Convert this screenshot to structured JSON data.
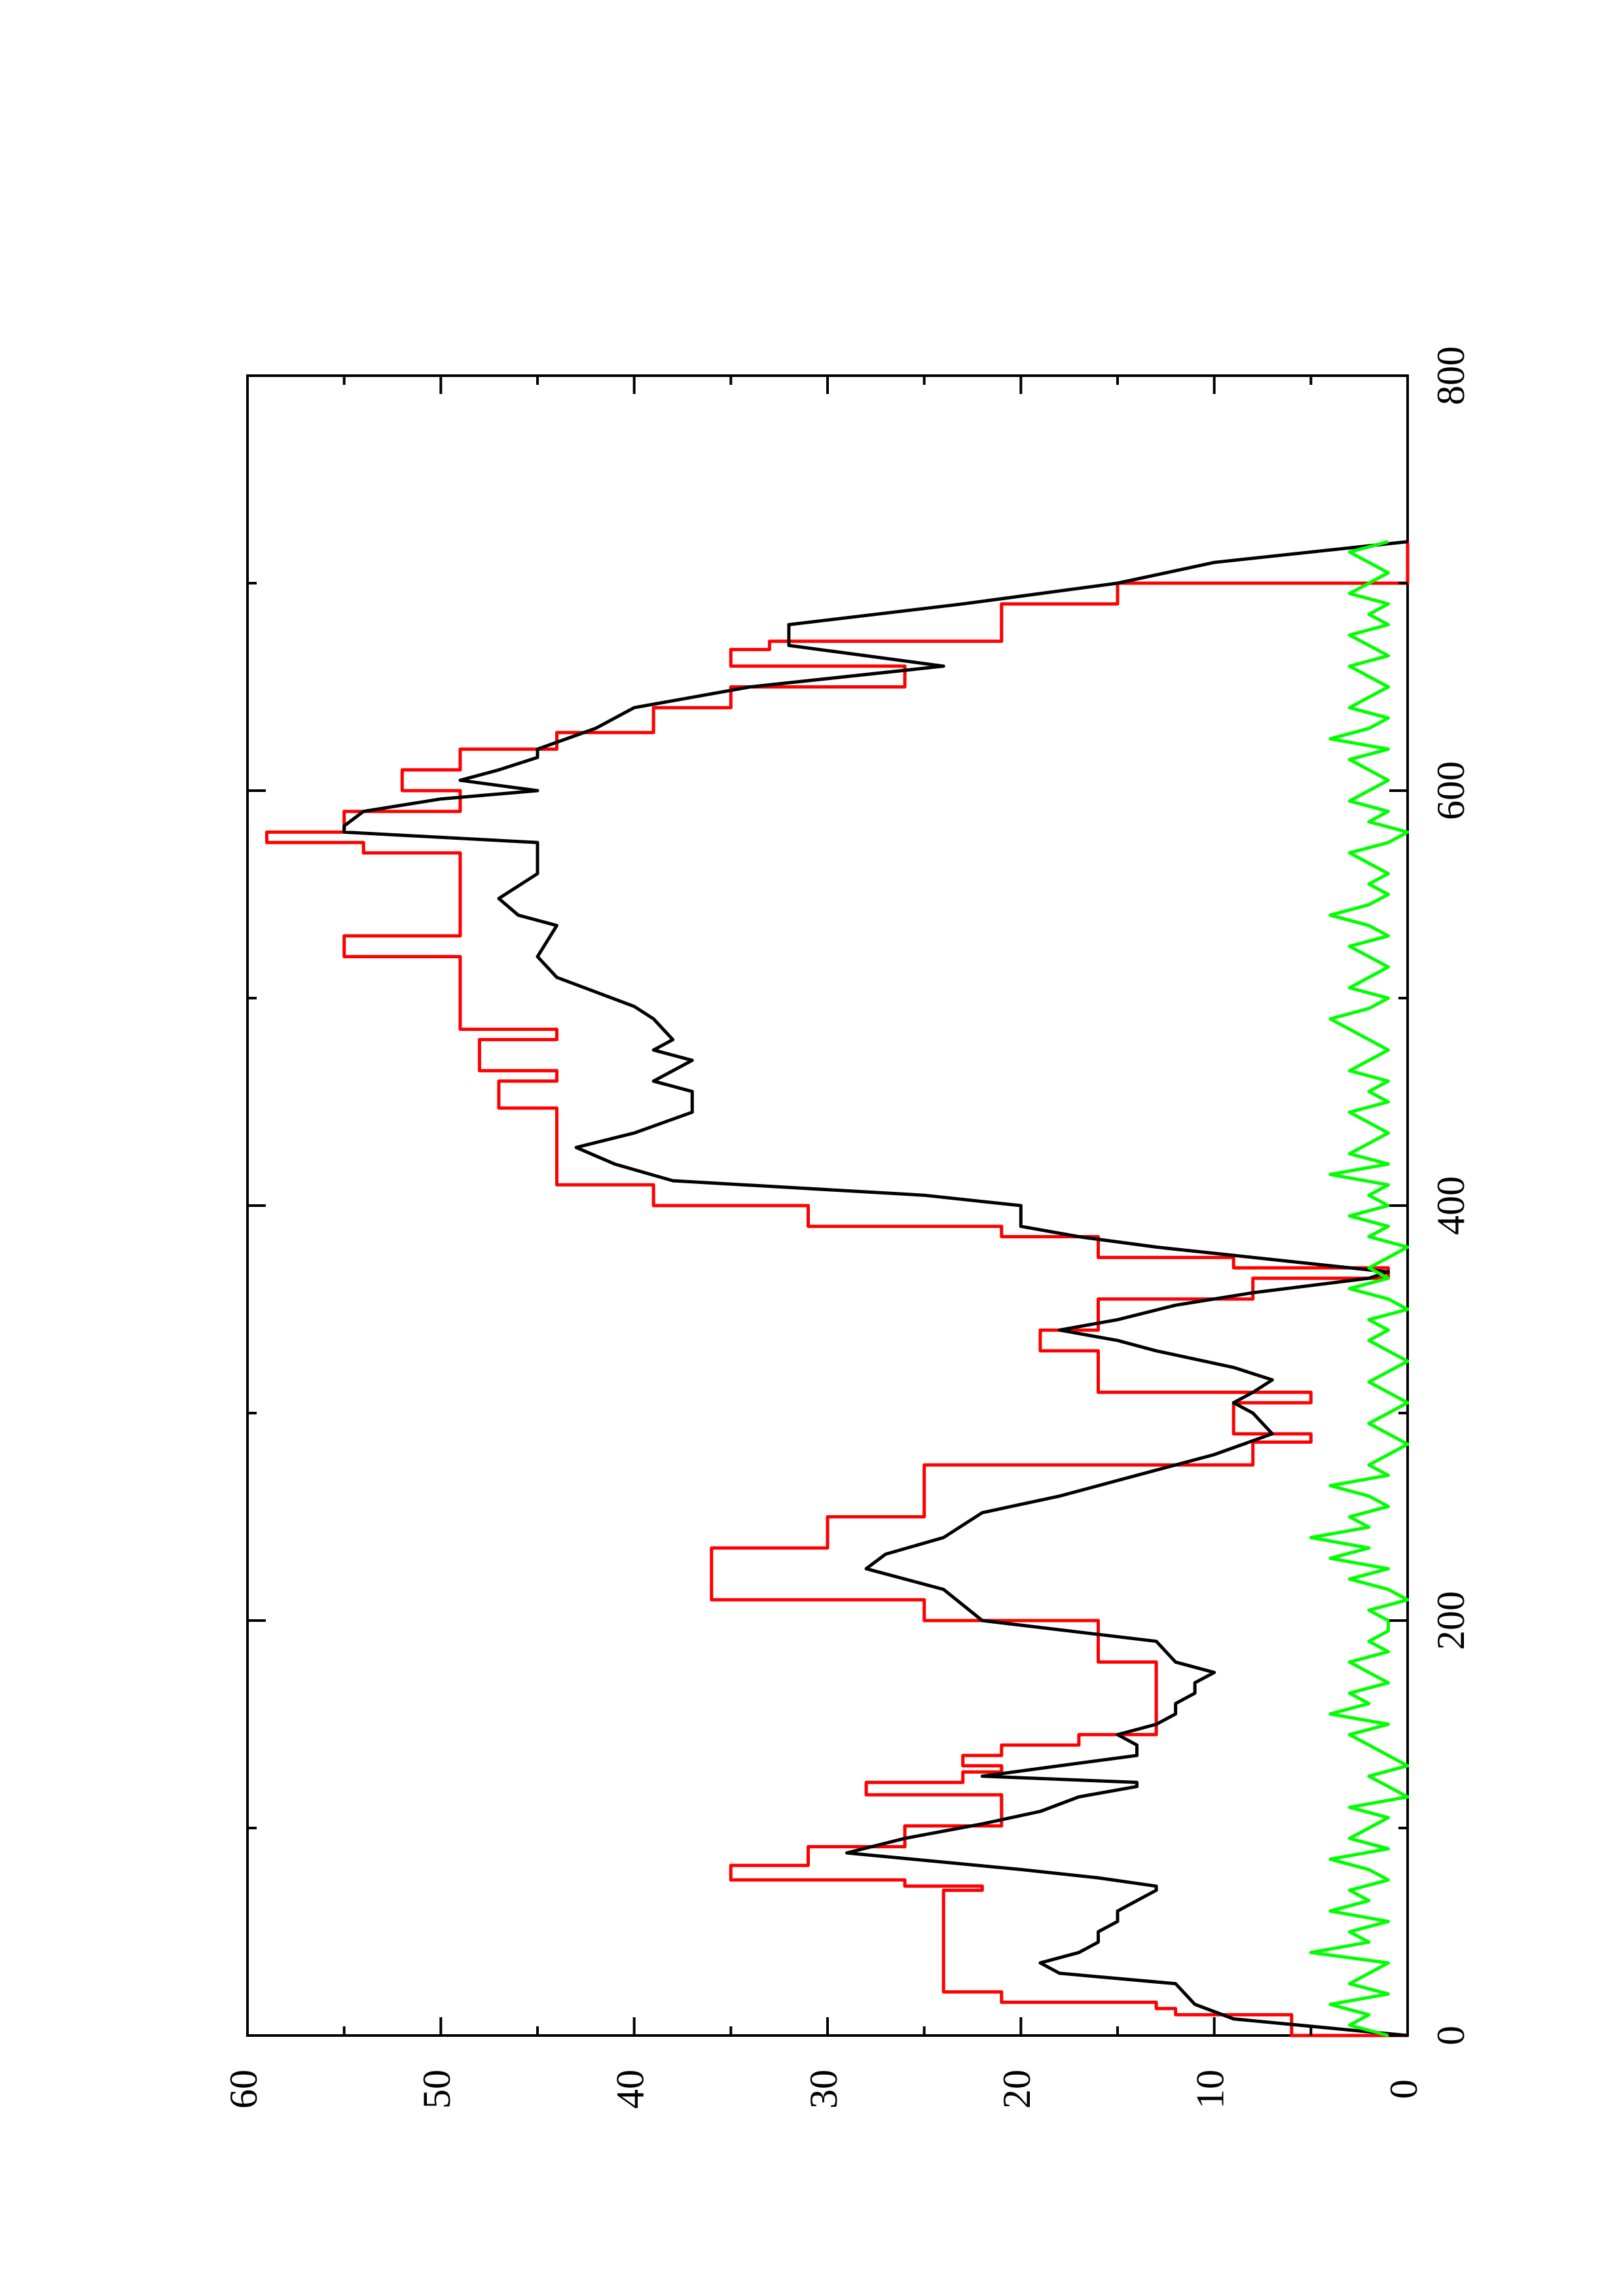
{
  "chart_data": {
    "type": "line",
    "title": "",
    "xlabel": "",
    "ylabel": "",
    "xlim": [
      0,
      800
    ],
    "ylim": [
      0,
      60
    ],
    "xticks": [
      0,
      200,
      400,
      600,
      800
    ],
    "yticks": [
      0,
      10,
      20,
      30,
      40,
      50,
      60
    ],
    "xtick_labels": [
      "0",
      "200",
      "400",
      "600",
      "800"
    ],
    "ytick_labels": [
      "0",
      "10",
      "20",
      "30",
      "40",
      "50",
      "60"
    ],
    "grid": false,
    "legend": false,
    "orientation": "rotated 90° counter-clockwise",
    "series": [
      {
        "color": "#ff0000",
        "style": "step",
        "x": [
          0,
          10,
          13,
          16,
          21,
          24,
          35,
          38,
          43,
          46,
          48,
          70,
          72,
          75,
          82,
          91,
          101,
          113,
          116,
          119,
          122,
          127,
          130,
          135,
          140,
          145,
          151,
          160,
          180,
          200,
          210,
          235,
          250,
          275,
          286,
          290,
          303,
          305,
          310,
          330,
          340,
          355,
          365,
          370,
          375,
          385,
          390,
          400,
          410,
          425,
          440,
          443,
          445,
          447,
          455,
          460,
          465,
          470,
          480,
          485,
          500,
          510,
          520,
          530,
          545,
          560,
          570,
          575,
          580,
          590,
          600,
          610,
          620,
          628,
          640,
          650,
          660,
          668,
          672,
          690,
          700,
          720
        ],
        "y": [
          0,
          6,
          12,
          13,
          21,
          24,
          24,
          24,
          24,
          24,
          24,
          24,
          22,
          26,
          35,
          31,
          26,
          21,
          21,
          28,
          28,
          23,
          21,
          23,
          21,
          17,
          13,
          13,
          13,
          16,
          25,
          36,
          30,
          25,
          8,
          5,
          9,
          9,
          5,
          16,
          19,
          16,
          8,
          1,
          9,
          16,
          21,
          31,
          39,
          44,
          44,
          44,
          44,
          44,
          47,
          47,
          44,
          48,
          48,
          44,
          49,
          49,
          49,
          55,
          49,
          49,
          49,
          54,
          59,
          55,
          49,
          52,
          49,
          44,
          39,
          35,
          26,
          35,
          33,
          21,
          15,
          0
        ]
      },
      {
        "color": "#000000",
        "style": "line",
        "x": [
          0,
          8,
          15,
          25,
          30,
          35,
          40,
          45,
          50,
          55,
          60,
          65,
          70,
          72,
          76,
          80,
          88,
          95,
          102,
          108,
          115,
          120,
          122,
          125,
          130,
          135,
          140,
          145,
          150,
          155,
          160,
          165,
          170,
          175,
          180,
          190,
          200,
          215,
          225,
          232,
          240,
          252,
          260,
          270,
          280,
          290,
          300,
          305,
          310,
          316,
          322,
          330,
          335,
          340,
          345,
          352,
          358,
          365,
          368,
          374,
          380,
          385,
          390,
          396,
          400,
          405,
          412,
          420,
          428,
          435,
          445,
          455,
          460,
          470,
          475,
          480,
          490,
          496,
          510,
          520,
          535,
          540,
          548,
          560,
          570,
          575,
          580,
          583,
          590,
          596,
          600,
          605,
          610,
          616,
          620,
          630,
          640,
          650,
          660,
          670,
          680,
          690,
          700,
          710,
          720
        ],
        "y": [
          0,
          9,
          11,
          12,
          18,
          19,
          17,
          16,
          16,
          15,
          15,
          14,
          13,
          13,
          16,
          20,
          29,
          26,
          22,
          19,
          17,
          14,
          14,
          22,
          18,
          14,
          14,
          15,
          13,
          12,
          12,
          11,
          11,
          10,
          12,
          13,
          22,
          24,
          28,
          27,
          24,
          22,
          18,
          14,
          10,
          7,
          8,
          9,
          8,
          7,
          9,
          13,
          15,
          18,
          15,
          12,
          8,
          2,
          1,
          7,
          13,
          17,
          20,
          20,
          20,
          25,
          38,
          41,
          43,
          40,
          37,
          37,
          39,
          37,
          39,
          38,
          39,
          40,
          44,
          45,
          44,
          46,
          47,
          45,
          45,
          45,
          55,
          55,
          54,
          50,
          45,
          49,
          47,
          45,
          45,
          42,
          40,
          34,
          24,
          32,
          32,
          23,
          15,
          10,
          0
        ]
      },
      {
        "color": "#00ff00",
        "style": "noise",
        "x": [
          0,
          5,
          10,
          15,
          20,
          25,
          30,
          35,
          40,
          45,
          50,
          55,
          60,
          65,
          70,
          75,
          80,
          85,
          90,
          95,
          100,
          105,
          110,
          115,
          120,
          125,
          130,
          135,
          140,
          145,
          150,
          155,
          160,
          165,
          170,
          175,
          180,
          185,
          190,
          195,
          200,
          205,
          210,
          215,
          220,
          225,
          230,
          235,
          240,
          245,
          250,
          255,
          260,
          265,
          270,
          275,
          280,
          285,
          290,
          295,
          300,
          305,
          310,
          315,
          320,
          325,
          330,
          335,
          340,
          345,
          350,
          355,
          360,
          365,
          370,
          375,
          380,
          385,
          390,
          395,
          400,
          405,
          410,
          415,
          420,
          425,
          430,
          435,
          440,
          445,
          450,
          455,
          460,
          465,
          470,
          475,
          480,
          485,
          490,
          495,
          500,
          505,
          510,
          515,
          520,
          525,
          530,
          535,
          540,
          545,
          550,
          555,
          560,
          565,
          570,
          575,
          580,
          585,
          590,
          595,
          600,
          605,
          610,
          615,
          620,
          625,
          630,
          635,
          640,
          645,
          650,
          655,
          660,
          665,
          670,
          675,
          680,
          685,
          690,
          695,
          700,
          705,
          710,
          715,
          720
        ],
        "y": [
          1,
          3,
          2,
          4,
          1,
          3,
          2,
          1,
          5,
          2,
          3,
          1,
          4,
          2,
          3,
          1,
          2,
          4,
          1,
          3,
          2,
          1,
          3,
          0,
          1,
          2,
          0,
          1,
          2,
          3,
          1,
          4,
          2,
          3,
          1,
          2,
          3,
          1,
          2,
          1,
          1,
          2,
          0,
          1,
          3,
          1,
          4,
          2,
          5,
          2,
          3,
          1,
          2,
          4,
          1,
          2,
          1,
          0,
          1,
          2,
          1,
          0,
          1,
          2,
          1,
          0,
          1,
          2,
          1,
          2,
          0,
          1,
          3,
          1,
          2,
          1,
          0,
          2,
          1,
          3,
          1,
          2,
          1,
          4,
          1,
          3,
          2,
          1,
          2,
          3,
          1,
          2,
          1,
          3,
          2,
          1,
          2,
          3,
          4,
          2,
          1,
          3,
          2,
          1,
          2,
          3,
          1,
          2,
          4,
          2,
          1,
          2,
          1,
          2,
          3,
          1,
          0,
          2,
          1,
          3,
          2,
          1,
          2,
          3,
          1,
          4,
          2,
          1,
          3,
          2,
          1,
          2,
          3,
          1,
          2,
          3,
          1,
          2,
          1,
          3,
          2,
          1,
          2,
          3,
          1
        ]
      }
    ]
  }
}
